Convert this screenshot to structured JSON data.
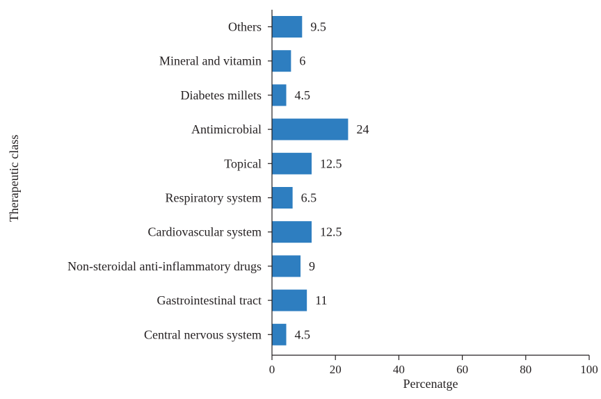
{
  "chart_data": {
    "type": "bar",
    "orientation": "horizontal",
    "title": "",
    "xlabel": "Percenatge",
    "ylabel": "Therapeutic class",
    "xlim": [
      0,
      100
    ],
    "xticks": [
      "0",
      "20",
      "40",
      "60",
      "80",
      "100"
    ],
    "grid": false,
    "legend": "none",
    "bar_color": "#2e7ec0",
    "categories": [
      "Others",
      "Mineral and vitamin",
      "Diabetes millets",
      "Antimicrobial",
      "Topical",
      "Respiratory system",
      "Cardiovascular system",
      "Non-steroidal anti-inflammatory drugs",
      "Gastrointestinal tract",
      "Central nervous system"
    ],
    "values": [
      9.5,
      6,
      4.5,
      24,
      12.5,
      6.5,
      12.5,
      9,
      11,
      4.5
    ],
    "value_labels": [
      "9.5",
      "6",
      "4.5",
      "24",
      "12.5",
      "6.5",
      "12.5",
      "9",
      "11",
      "4.5"
    ]
  }
}
